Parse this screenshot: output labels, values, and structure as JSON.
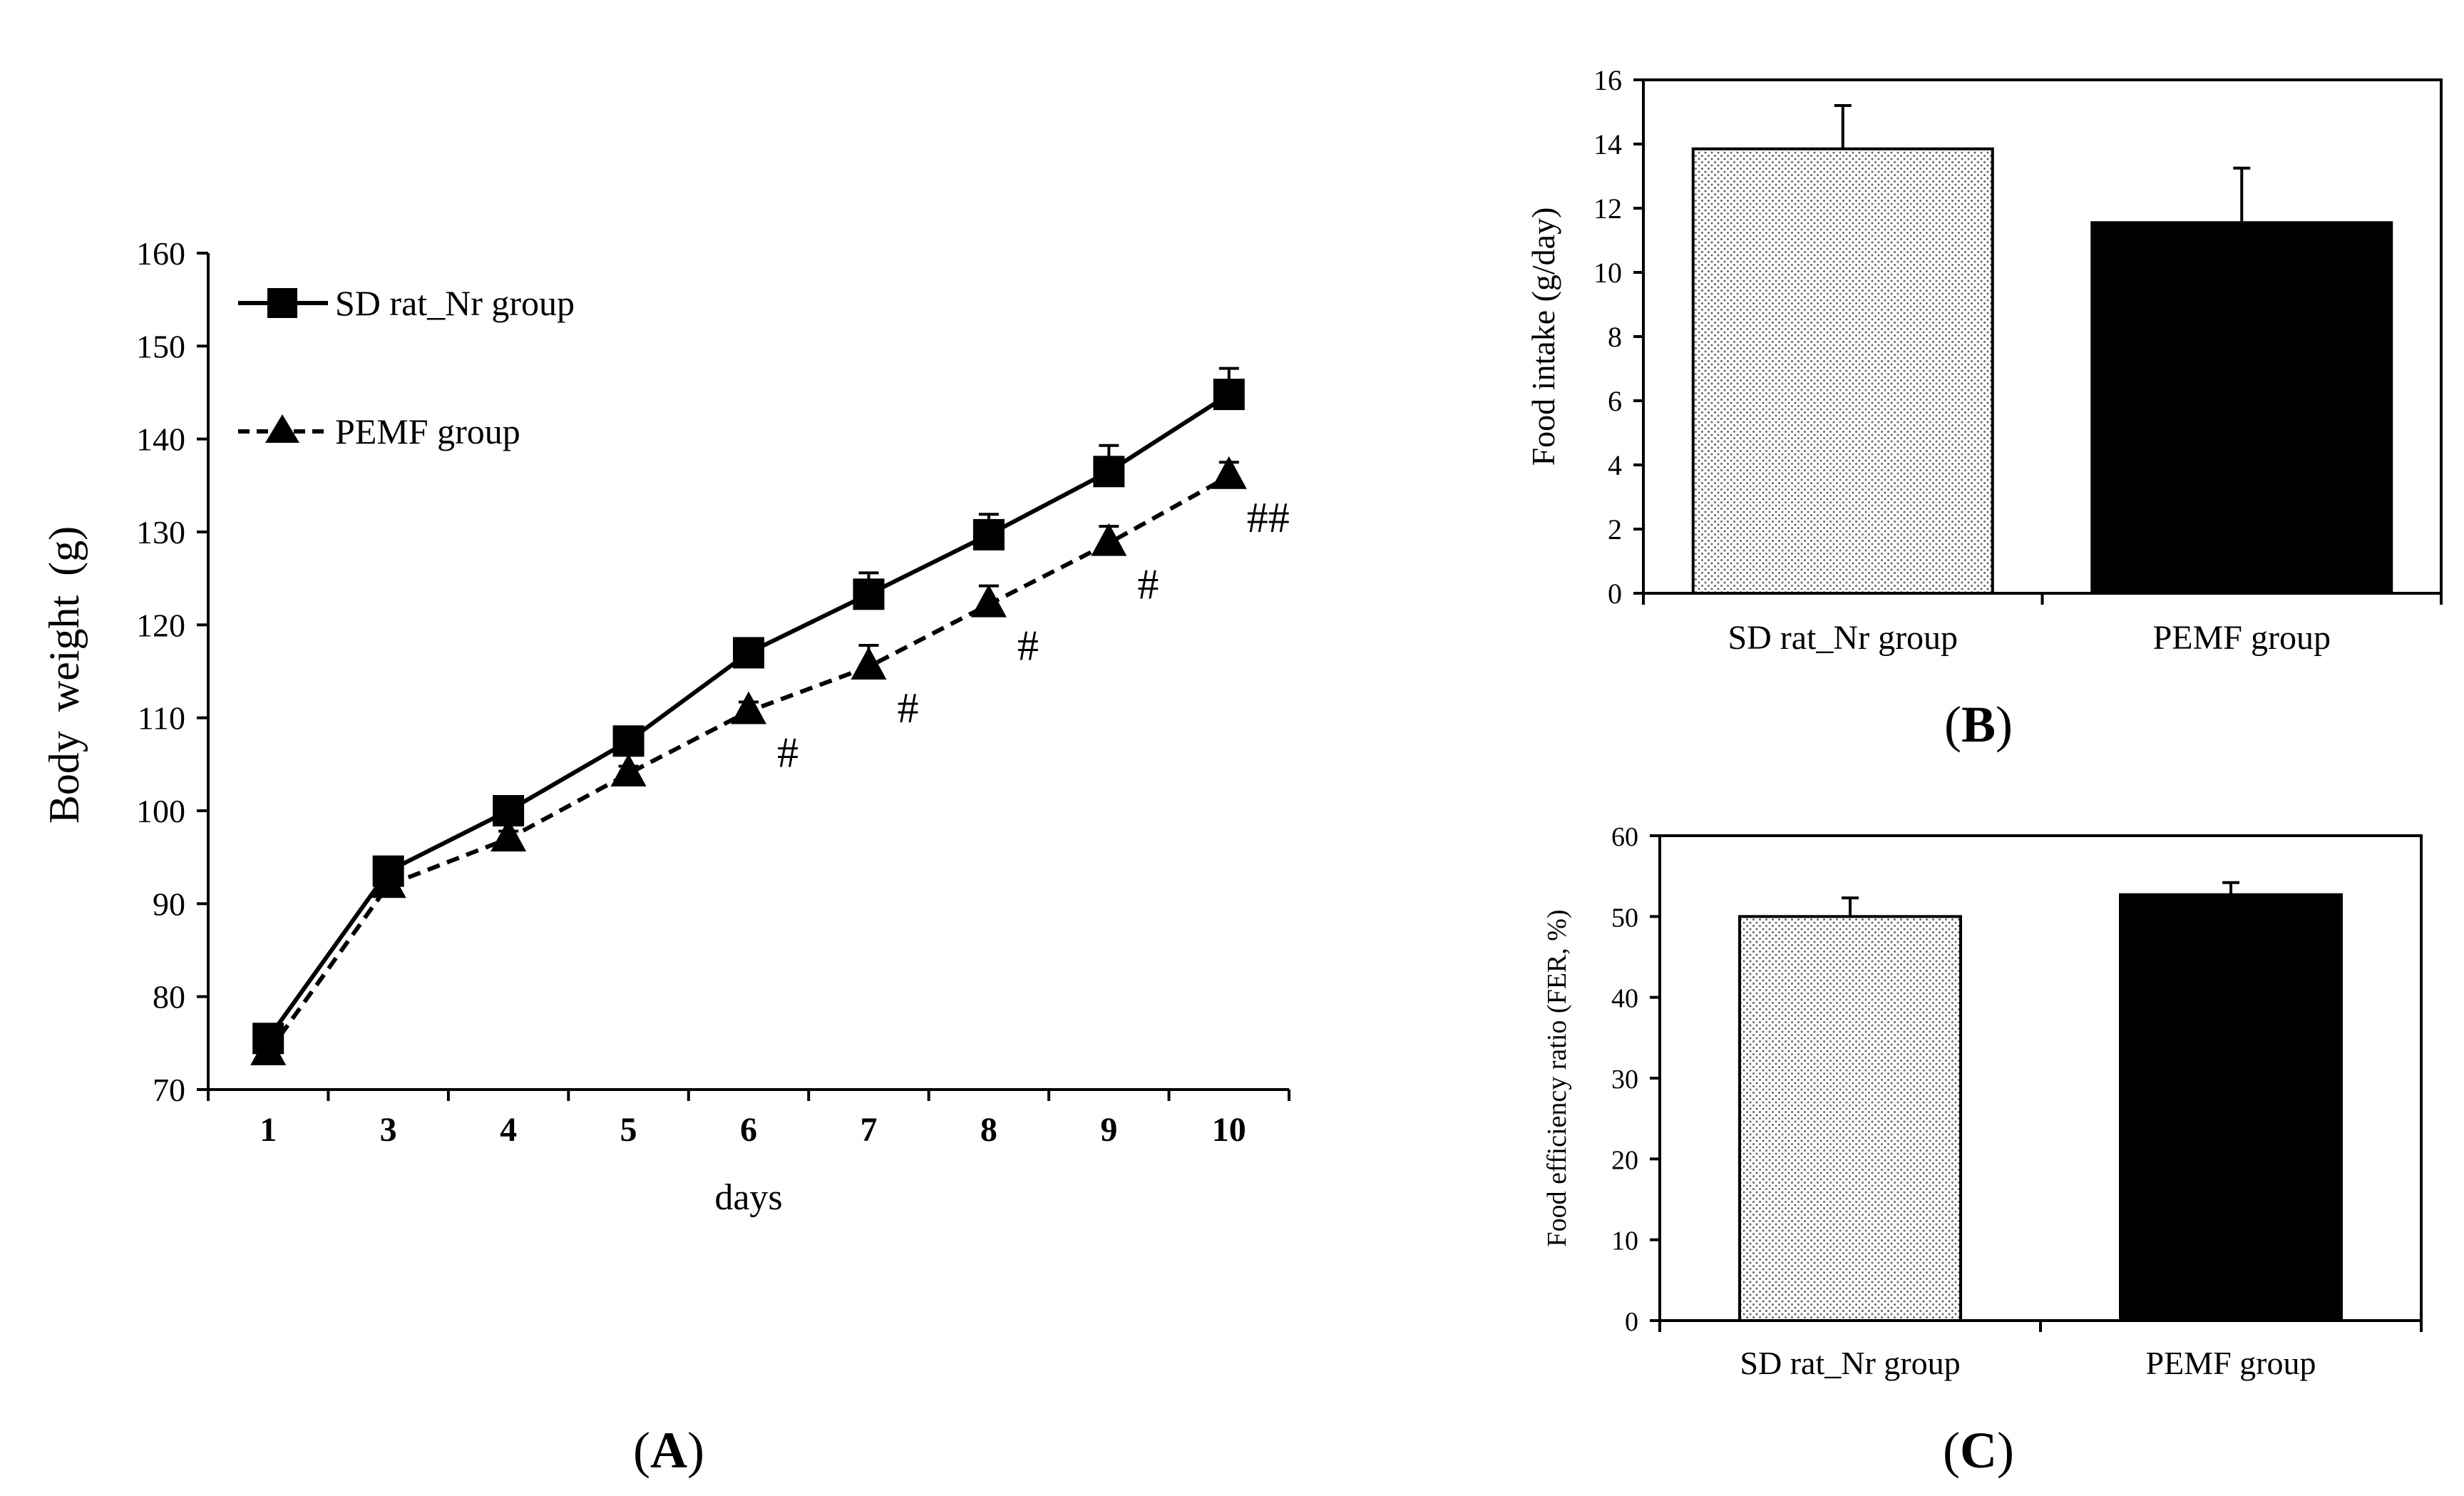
{
  "chart_data": [
    {
      "id": "A",
      "type": "line",
      "panel_label": "(A)",
      "panel_letter": "A",
      "xlabel": "days",
      "ylabel": "Body weight (g)",
      "categories": [
        "1",
        "3",
        "4",
        "5",
        "6",
        "7",
        "8",
        "9",
        "10"
      ],
      "ylim": [
        70,
        160
      ],
      "yticks": [
        70,
        80,
        90,
        100,
        110,
        120,
        130,
        140,
        150,
        160
      ],
      "series": [
        {
          "name": "SD rat_Nr group",
          "marker": "square",
          "line": "solid",
          "values": [
            75.5,
            93.5,
            100,
            107.5,
            117,
            123.3,
            129.7,
            136.5,
            144.8
          ],
          "errors": [
            0.5,
            0.8,
            0.8,
            1.0,
            1.3,
            2.3,
            2.2,
            2.8,
            2.8
          ]
        },
        {
          "name": "PEMF group",
          "marker": "triangle",
          "line": "dashed",
          "values": [
            74,
            92,
            97,
            104,
            110.7,
            115.5,
            122.2,
            128.8,
            136
          ],
          "errors": [
            0.3,
            0.5,
            0.8,
            0.8,
            1.0,
            2.3,
            2.0,
            1.8,
            1.5
          ]
        }
      ],
      "annotations": [
        {
          "category": "6",
          "text": "#"
        },
        {
          "category": "7",
          "text": "#"
        },
        {
          "category": "8",
          "text": "#"
        },
        {
          "category": "9",
          "text": "#"
        },
        {
          "category": "10",
          "text": "##"
        }
      ]
    },
    {
      "id": "B",
      "type": "bar",
      "panel_label": "(B)",
      "panel_letter": "B",
      "xlabel": "",
      "ylabel": "Food intake (g/day)",
      "categories": [
        "SD rat_Nr group",
        "PEMF group"
      ],
      "values": [
        13.85,
        11.55
      ],
      "errors": [
        1.35,
        1.7
      ],
      "fills": [
        "dotted",
        "#000000"
      ],
      "ylim": [
        0,
        16
      ],
      "yticks": [
        0,
        2,
        4,
        6,
        8,
        10,
        12,
        14,
        16
      ]
    },
    {
      "id": "C",
      "type": "bar",
      "panel_label": "(C)",
      "panel_letter": "C",
      "xlabel": "",
      "ylabel": "Food efficiency ratio (FER, %)",
      "categories": [
        "SD rat_Nr group",
        "PEMF group"
      ],
      "values": [
        50,
        52.7
      ],
      "errors": [
        2.3,
        1.5
      ],
      "fills": [
        "dotted",
        "#000000"
      ],
      "ylim": [
        0,
        60
      ],
      "yticks": [
        0,
        10,
        20,
        30,
        40,
        50,
        60
      ]
    }
  ]
}
